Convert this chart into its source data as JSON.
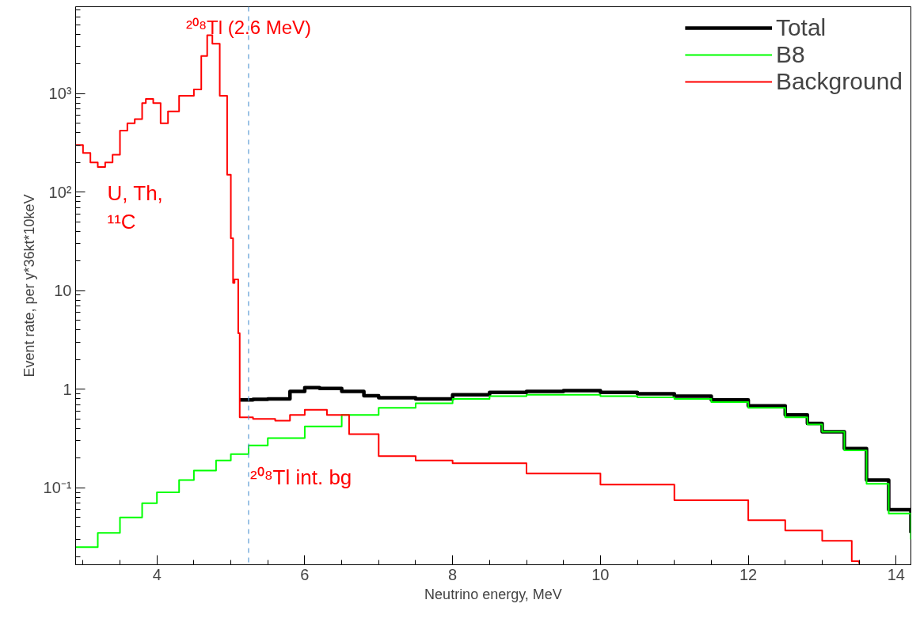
{
  "chart_data": {
    "type": "step",
    "xlabel": "Neutrino energy, MeV",
    "ylabel": "Event rate, per y*36kt*10keV",
    "log": "y",
    "xlim": [
      2.9,
      14.2
    ],
    "xticks": [
      4,
      6,
      8,
      10,
      12,
      14
    ],
    "ylim": [
      0.0166,
      7600
    ],
    "yticks": [
      {
        "value": 0.1,
        "label": "10⁻¹"
      },
      1,
      10,
      {
        "value": 100,
        "label": "10²"
      },
      {
        "value": 1000,
        "label": "10³"
      }
    ],
    "grid": false,
    "legend": "top right",
    "marker": "none",
    "line_style": "solid",
    "series": [
      {
        "name": "Total",
        "color": "#000000",
        "x": [
          5.12,
          5.3,
          5.5,
          5.8,
          6.0,
          6.2,
          6.5,
          6.8,
          7.0,
          7.5,
          8.0,
          8.5,
          9.0,
          9.5,
          10.0,
          10.5,
          11.0,
          11.5,
          12.0,
          12.5,
          12.8,
          13.0,
          13.3,
          13.6,
          13.9,
          14.2
        ],
        "values": [
          0.78,
          0.79,
          0.8,
          0.95,
          1.04,
          1.02,
          0.95,
          0.86,
          0.82,
          0.8,
          0.88,
          0.93,
          0.95,
          0.97,
          0.93,
          0.9,
          0.85,
          0.78,
          0.68,
          0.55,
          0.45,
          0.37,
          0.25,
          0.12,
          0.06,
          0.035
        ]
      },
      {
        "name": "B8",
        "color": "#00ff00",
        "x": [
          2.9,
          3.2,
          3.5,
          3.8,
          4.0,
          4.3,
          4.5,
          4.8,
          5.0,
          5.24,
          5.5,
          6.0,
          6.5,
          7.0,
          7.5,
          8.0,
          8.5,
          9.0,
          9.5,
          10.0,
          10.5,
          11.0,
          11.5,
          12.0,
          12.5,
          12.8,
          13.0,
          13.3,
          13.6,
          13.9,
          14.2
        ],
        "values": [
          0.025,
          0.035,
          0.05,
          0.07,
          0.09,
          0.12,
          0.15,
          0.19,
          0.22,
          0.27,
          0.32,
          0.42,
          0.55,
          0.65,
          0.72,
          0.8,
          0.85,
          0.88,
          0.88,
          0.85,
          0.83,
          0.8,
          0.74,
          0.65,
          0.52,
          0.44,
          0.37,
          0.24,
          0.11,
          0.055,
          0.03
        ]
      },
      {
        "name": "Background",
        "color": "#ff0000",
        "x": [
          2.9,
          3.0,
          3.1,
          3.2,
          3.3,
          3.4,
          3.5,
          3.6,
          3.7,
          3.8,
          3.85,
          3.95,
          4.05,
          4.15,
          4.3,
          4.5,
          4.6,
          4.68,
          4.75,
          4.85,
          4.95,
          5.0,
          5.03,
          5.05,
          5.1,
          5.12,
          5.3,
          5.6,
          5.8,
          6.0,
          6.3,
          6.6,
          7.0,
          7.5,
          8.0,
          9.0,
          10.0,
          11.0,
          12.0,
          12.5,
          13.0,
          13.4,
          13.5
        ],
        "values": [
          300,
          250,
          200,
          180,
          200,
          240,
          420,
          500,
          550,
          800,
          880,
          800,
          500,
          660,
          950,
          1100,
          2400,
          3900,
          3200,
          950,
          150,
          34,
          12,
          13,
          3.7,
          0.52,
          0.5,
          0.48,
          0.55,
          0.62,
          0.55,
          0.35,
          0.21,
          0.19,
          0.178,
          0.14,
          0.108,
          0.075,
          0.047,
          0.037,
          0.029,
          0.018,
          0.017
        ]
      }
    ],
    "ref_lines": [
      {
        "axis": "x",
        "value": 5.24,
        "label": "²⁰⁸Tl (2.6 MeV)",
        "color": "#5b9bd5",
        "line_style": "dashed"
      }
    ],
    "annotations": [
      "U, Th,\n¹¹C",
      {
        "text": "²⁰⁸Tl int. bg",
        "x": 5.24,
        "y": 0.17
      }
    ]
  }
}
